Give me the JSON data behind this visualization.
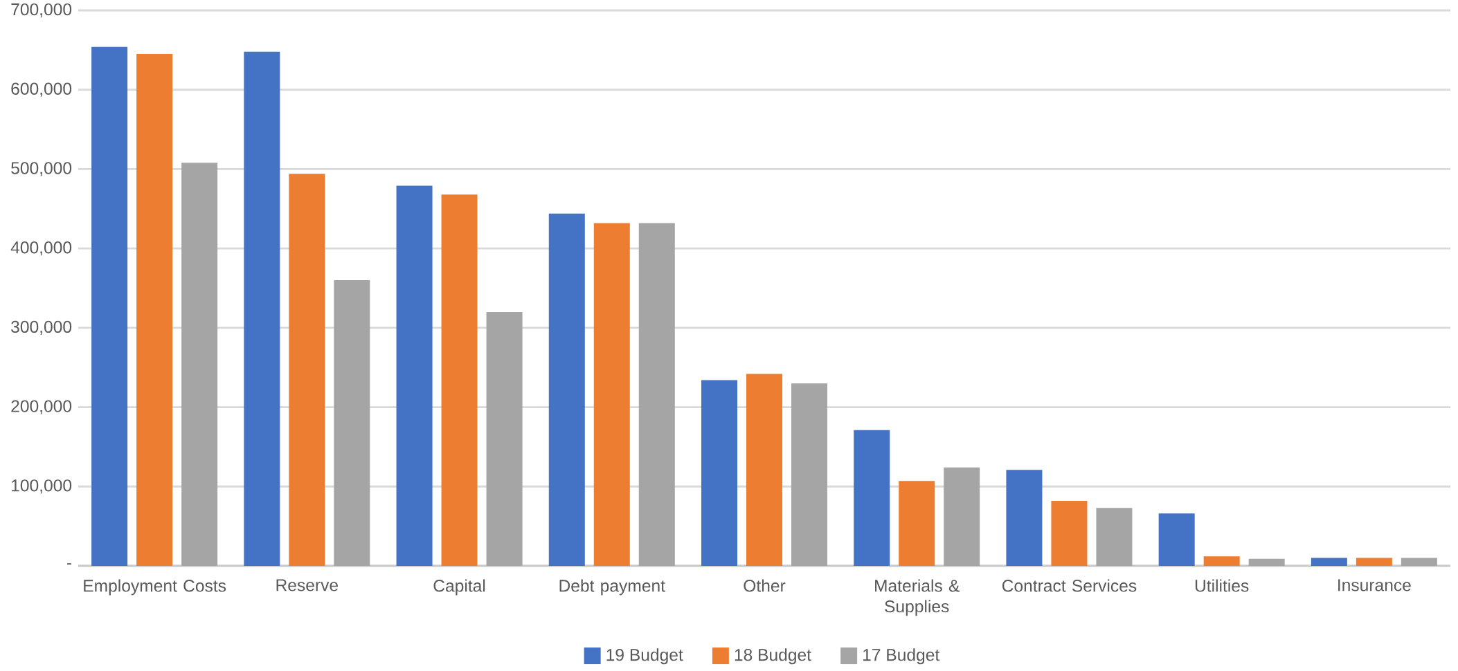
{
  "chart_data": {
    "type": "bar",
    "categories": [
      "Employment Costs",
      "Reserve",
      "Capital",
      "Debt payment",
      "Other",
      "Materials & Supplies",
      "Contract Services",
      "Utilities",
      "Insurance"
    ],
    "series": [
      {
        "name": "19 Budget",
        "color": "#4472c4",
        "values": [
          654000,
          648000,
          479000,
          444000,
          234000,
          171000,
          121000,
          66000,
          10000
        ]
      },
      {
        "name": "18 Budget",
        "color": "#ed7d31",
        "values": [
          645000,
          494000,
          468000,
          432000,
          242000,
          107000,
          82000,
          12000,
          10000
        ]
      },
      {
        "name": "17  Budget",
        "color": "#a5a5a5",
        "values": [
          508000,
          360000,
          320000,
          432000,
          230000,
          124000,
          73000,
          9000,
          10000
        ]
      }
    ],
    "ylim": [
      0,
      700000
    ],
    "yticks": [
      {
        "value": 0,
        "label": "-"
      },
      {
        "value": 100000,
        "label": "100,000"
      },
      {
        "value": 200000,
        "label": "200,000"
      },
      {
        "value": 300000,
        "label": "300,000"
      },
      {
        "value": 400000,
        "label": "400,000"
      },
      {
        "value": 500000,
        "label": "500,000"
      },
      {
        "value": 600000,
        "label": "600,000"
      },
      {
        "value": 700000,
        "label": "700,000"
      }
    ],
    "grid": "y",
    "legend": "bottom"
  }
}
